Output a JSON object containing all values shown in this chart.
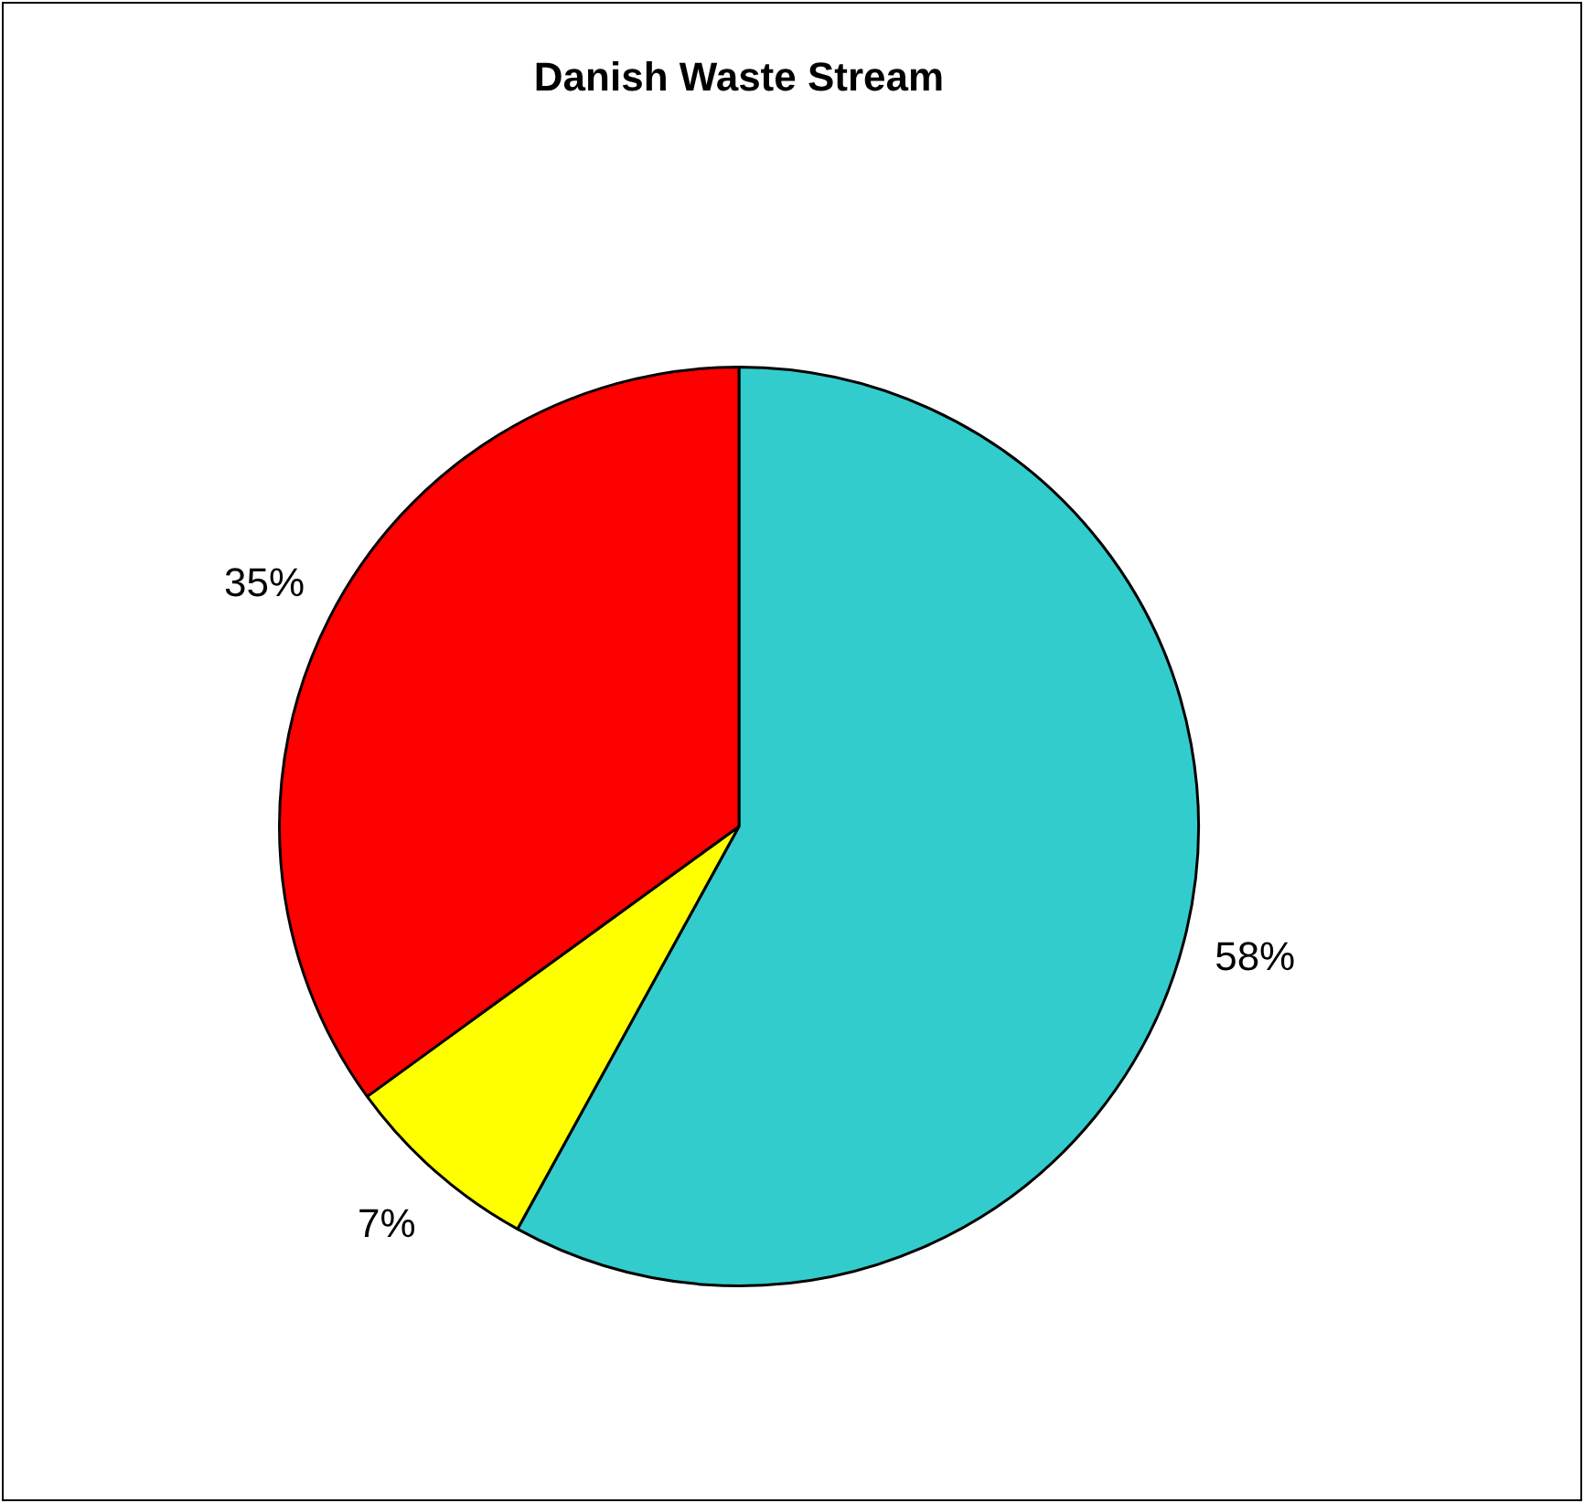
{
  "chart_data": {
    "type": "pie",
    "title": "Danish Waste Stream",
    "categories": [
      null,
      null,
      null
    ],
    "values": [
      58,
      7,
      35
    ],
    "colors": [
      "#33cccc",
      "#ffff00",
      "#ff0000"
    ],
    "value_labels": [
      "58%",
      "7%",
      "35%"
    ],
    "legend": false
  }
}
